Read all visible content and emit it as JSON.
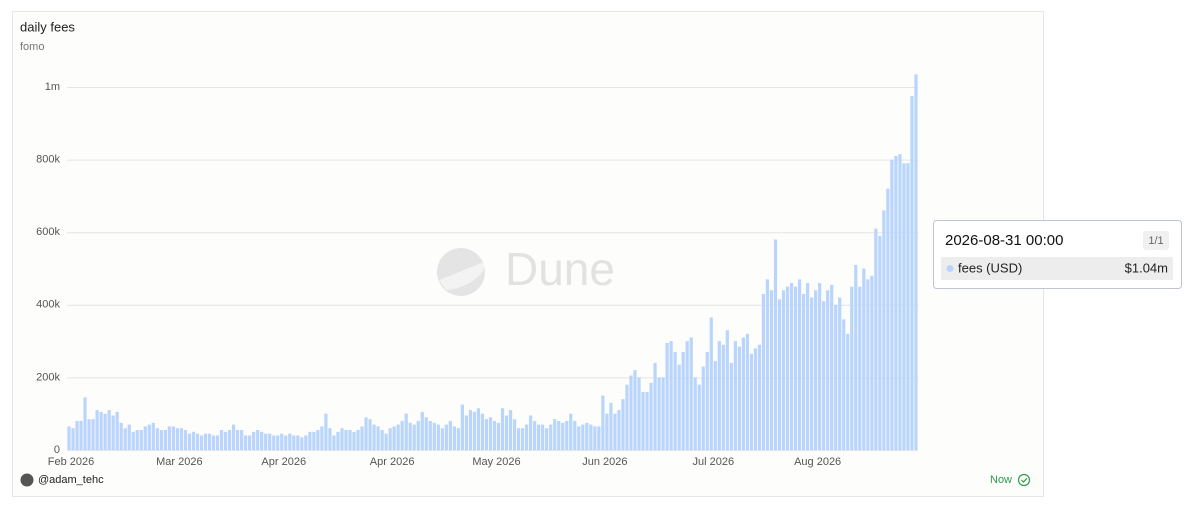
{
  "chart_data": {
    "type": "bar",
    "title": "daily fees",
    "subtitle": "fomo",
    "watermark": "Dune",
    "categories": [
      "Feb 2026",
      null,
      null,
      null,
      null,
      null,
      null,
      null,
      null,
      null,
      null,
      null,
      null,
      null,
      null,
      null,
      null,
      null,
      null,
      null,
      null,
      null,
      null,
      null,
      null,
      null,
      null,
      "Mar 2026",
      null,
      null,
      null,
      null,
      null,
      null,
      null,
      null,
      null,
      null,
      null,
      null,
      null,
      null,
      null,
      null,
      null,
      null,
      null,
      null,
      null,
      null,
      null,
      null,
      null,
      "Apr 2026",
      null,
      null,
      null,
      null,
      null,
      null,
      null,
      null,
      null,
      null,
      null,
      null,
      null,
      null,
      null,
      null,
      null,
      null,
      null,
      null,
      null,
      null,
      null,
      null,
      null,
      null,
      "Apr 2026",
      null,
      null,
      null,
      null,
      null,
      null,
      null,
      null,
      null,
      null,
      null,
      null,
      null,
      null,
      null,
      null,
      null,
      null,
      null,
      null,
      null,
      null,
      null,
      null,
      null,
      "May 2026",
      null,
      null,
      null,
      null,
      null,
      null,
      null,
      null,
      null,
      null,
      null,
      null,
      null,
      null,
      null,
      null,
      null,
      null,
      null,
      null,
      null,
      null,
      null,
      null,
      null,
      null,
      "Jun 2026",
      null,
      null,
      null,
      null,
      null,
      null,
      null,
      null,
      null,
      null,
      null,
      null,
      null,
      null,
      null,
      null,
      null,
      null,
      null,
      null,
      null,
      null,
      null,
      null,
      null,
      null,
      "Jul 2026",
      null,
      null,
      null,
      null,
      null,
      null,
      null,
      null,
      null,
      null,
      null,
      null,
      null,
      null,
      null,
      null,
      null,
      null,
      null,
      null,
      null,
      null,
      null,
      null,
      null,
      "Aug 2026",
      null,
      null,
      null,
      null,
      null,
      null,
      null,
      null,
      null,
      null,
      null,
      null,
      null,
      null,
      null,
      null,
      null,
      null,
      null,
      null,
      null,
      null,
      null,
      null,
      null
    ],
    "series": [
      {
        "name": "fees (USD)",
        "color": "#b9d5fb",
        "values": [
          65000,
          60000,
          80000,
          80000,
          145000,
          85000,
          85000,
          110000,
          105000,
          100000,
          110000,
          95000,
          105000,
          75000,
          60000,
          70000,
          50000,
          55000,
          55000,
          65000,
          70000,
          75000,
          60000,
          55000,
          55000,
          65000,
          65000,
          60000,
          60000,
          55000,
          45000,
          50000,
          45000,
          40000,
          45000,
          45000,
          40000,
          40000,
          55000,
          50000,
          55000,
          70000,
          55000,
          55000,
          40000,
          40000,
          50000,
          55000,
          50000,
          45000,
          45000,
          40000,
          40000,
          45000,
          40000,
          45000,
          40000,
          40000,
          35000,
          40000,
          50000,
          50000,
          55000,
          65000,
          100000,
          60000,
          40000,
          50000,
          60000,
          55000,
          55000,
          50000,
          55000,
          65000,
          90000,
          85000,
          70000,
          65000,
          55000,
          45000,
          60000,
          65000,
          70000,
          80000,
          100000,
          75000,
          70000,
          80000,
          105000,
          90000,
          80000,
          75000,
          70000,
          60000,
          70000,
          80000,
          65000,
          60000,
          125000,
          95000,
          110000,
          105000,
          115000,
          100000,
          85000,
          90000,
          80000,
          75000,
          115000,
          95000,
          110000,
          85000,
          60000,
          60000,
          70000,
          95000,
          80000,
          70000,
          70000,
          60000,
          70000,
          85000,
          80000,
          75000,
          80000,
          100000,
          80000,
          65000,
          70000,
          75000,
          70000,
          65000,
          65000,
          150000,
          100000,
          130000,
          100000,
          110000,
          140000,
          180000,
          205000,
          220000,
          200000,
          160000,
          160000,
          185000,
          240000,
          200000,
          200000,
          295000,
          300000,
          270000,
          235000,
          270000,
          300000,
          310000,
          200000,
          180000,
          230000,
          270000,
          365000,
          245000,
          300000,
          290000,
          330000,
          240000,
          300000,
          285000,
          310000,
          320000,
          265000,
          280000,
          290000,
          430000,
          470000,
          440000,
          580000,
          415000,
          440000,
          450000,
          460000,
          450000,
          470000,
          430000,
          460000,
          420000,
          440000,
          460000,
          410000,
          440000,
          455000,
          400000,
          420000,
          360000,
          320000,
          450000,
          510000,
          450000,
          500000,
          470000,
          480000,
          610000,
          590000,
          660000,
          720000,
          800000,
          810000,
          815000,
          790000,
          790000,
          975000,
          1035000
        ]
      }
    ],
    "ylim": [
      0,
      1040000
    ],
    "yticks": [
      0,
      {
        "value": 200000,
        "label": "200k"
      },
      {
        "value": 400000,
        "label": "400k"
      },
      {
        "value": 600000,
        "label": "600k"
      },
      {
        "value": 800000,
        "label": "800k"
      },
      {
        "value": 1000000,
        "label": "1m"
      }
    ],
    "grid": true,
    "tooltip": {
      "title": "2026-08-31 00:00",
      "counter": "1/1",
      "value_label": "$1.04m"
    }
  },
  "footer": {
    "author": "@adam_tehc",
    "status": "Now"
  }
}
